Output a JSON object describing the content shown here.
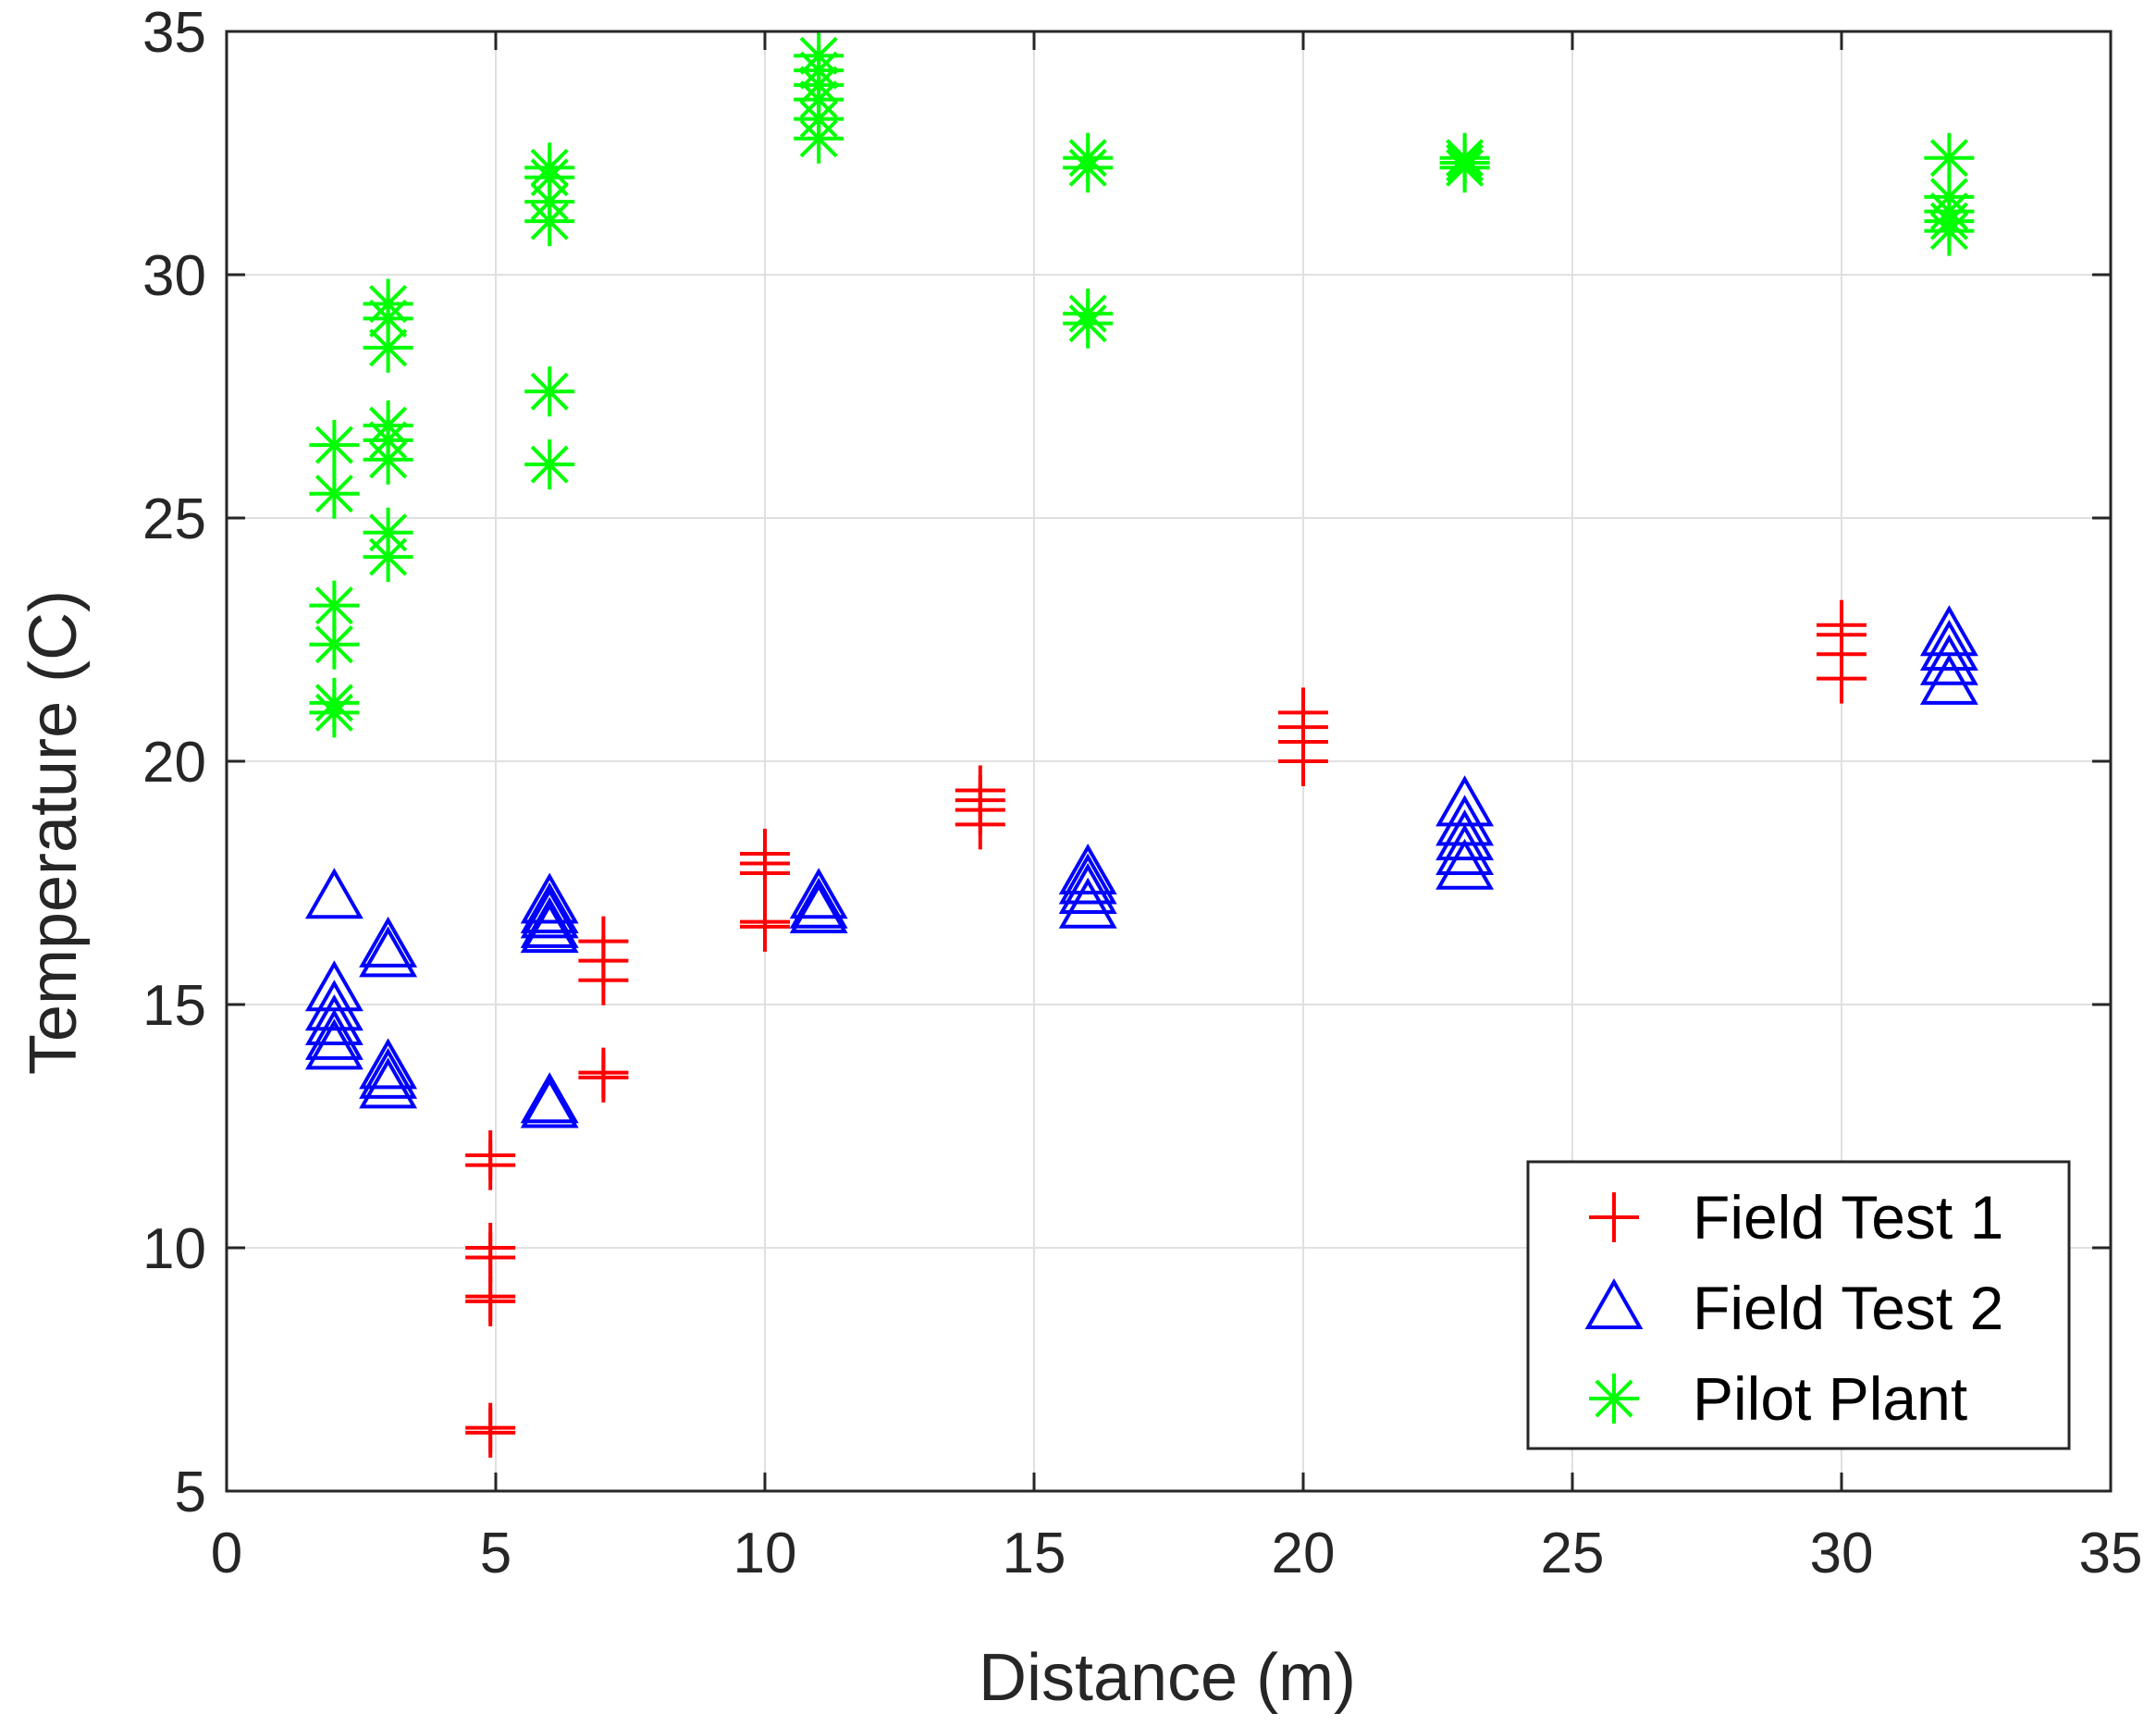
{
  "chart_data": {
    "type": "scatter",
    "title": "",
    "xlabel": "Distance (m)",
    "ylabel": "Temperature (C)",
    "xlim": [
      0,
      35
    ],
    "ylim": [
      5,
      35
    ],
    "xticks": [
      0,
      5,
      10,
      15,
      20,
      25,
      30,
      35
    ],
    "yticks": [
      5,
      10,
      15,
      20,
      25,
      30,
      35
    ],
    "xtick_labels": [
      "0",
      "5",
      "10",
      "15",
      "20",
      "25",
      "30",
      "35"
    ],
    "ytick_labels": [
      "5",
      "10",
      "15",
      "20",
      "25",
      "30",
      "35"
    ],
    "grid": true,
    "legend_position": "bottom-right",
    "series": [
      {
        "name": "Field Test 1",
        "marker": "plus",
        "color": "#ff0000",
        "points": [
          [
            4.9,
            11.9
          ],
          [
            4.9,
            11.7
          ],
          [
            4.9,
            10.0
          ],
          [
            4.9,
            9.8
          ],
          [
            4.9,
            9.0
          ],
          [
            4.9,
            8.9
          ],
          [
            4.9,
            6.3
          ],
          [
            4.9,
            6.2
          ],
          [
            7.0,
            16.3
          ],
          [
            7.0,
            15.9
          ],
          [
            7.0,
            15.5
          ],
          [
            7.0,
            13.6
          ],
          [
            7.0,
            13.5
          ],
          [
            10.0,
            18.1
          ],
          [
            10.0,
            17.9
          ],
          [
            10.0,
            17.7
          ],
          [
            10.0,
            16.7
          ],
          [
            10.0,
            16.6
          ],
          [
            14.0,
            19.4
          ],
          [
            14.0,
            19.2
          ],
          [
            14.0,
            19.0
          ],
          [
            14.0,
            18.7
          ],
          [
            20.0,
            21.0
          ],
          [
            20.0,
            20.7
          ],
          [
            20.0,
            20.4
          ],
          [
            20.0,
            20.0
          ],
          [
            30.0,
            22.8
          ],
          [
            30.0,
            22.6
          ],
          [
            30.0,
            22.2
          ],
          [
            30.0,
            21.7
          ]
        ]
      },
      {
        "name": "Field Test 2",
        "marker": "triangle",
        "color": "#0000ff",
        "points": [
          [
            2.0,
            17.2
          ],
          [
            2.0,
            15.3
          ],
          [
            2.0,
            14.9
          ],
          [
            2.0,
            14.6
          ],
          [
            2.0,
            14.3
          ],
          [
            2.0,
            14.1
          ],
          [
            3.0,
            16.2
          ],
          [
            3.0,
            16.0
          ],
          [
            3.0,
            13.7
          ],
          [
            3.0,
            13.5
          ],
          [
            3.0,
            13.3
          ],
          [
            6.0,
            17.1
          ],
          [
            6.0,
            16.9
          ],
          [
            6.0,
            16.8
          ],
          [
            6.0,
            16.6
          ],
          [
            6.0,
            16.5
          ],
          [
            6.0,
            13.0
          ],
          [
            6.0,
            12.9
          ],
          [
            11.0,
            17.2
          ],
          [
            11.0,
            17.0
          ],
          [
            11.0,
            16.9
          ],
          [
            16.0,
            17.7
          ],
          [
            16.0,
            17.5
          ],
          [
            16.0,
            17.3
          ],
          [
            16.0,
            17.0
          ],
          [
            23.0,
            19.1
          ],
          [
            23.0,
            18.7
          ],
          [
            23.0,
            18.4
          ],
          [
            23.0,
            18.1
          ],
          [
            23.0,
            17.8
          ],
          [
            32.0,
            22.6
          ],
          [
            32.0,
            22.3
          ],
          [
            32.0,
            22.0
          ],
          [
            32.0,
            21.6
          ]
        ]
      },
      {
        "name": "Pilot Plant",
        "marker": "asterisk",
        "color": "#00ff00",
        "points": [
          [
            2.0,
            26.5
          ],
          [
            2.0,
            25.5
          ],
          [
            2.0,
            23.2
          ],
          [
            2.0,
            22.4
          ],
          [
            2.0,
            21.2
          ],
          [
            2.0,
            21.0
          ],
          [
            3.0,
            29.4
          ],
          [
            3.0,
            29.1
          ],
          [
            3.0,
            28.5
          ],
          [
            3.0,
            26.9
          ],
          [
            3.0,
            26.6
          ],
          [
            3.0,
            26.2
          ],
          [
            3.0,
            24.7
          ],
          [
            3.0,
            24.2
          ],
          [
            6.0,
            32.2
          ],
          [
            6.0,
            32.0
          ],
          [
            6.0,
            31.5
          ],
          [
            6.0,
            31.1
          ],
          [
            6.0,
            27.6
          ],
          [
            6.0,
            26.1
          ],
          [
            11.0,
            34.5
          ],
          [
            11.0,
            34.2
          ],
          [
            11.0,
            33.9
          ],
          [
            11.0,
            33.6
          ],
          [
            11.0,
            33.2
          ],
          [
            11.0,
            32.8
          ],
          [
            16.0,
            32.4
          ],
          [
            16.0,
            32.2
          ],
          [
            16.0,
            29.2
          ],
          [
            16.0,
            29.0
          ],
          [
            23.0,
            32.4
          ],
          [
            23.0,
            32.3
          ],
          [
            23.0,
            32.2
          ],
          [
            32.0,
            32.4
          ],
          [
            32.0,
            31.6
          ],
          [
            32.0,
            31.3
          ],
          [
            32.0,
            31.1
          ],
          [
            32.0,
            30.9
          ]
        ]
      }
    ]
  }
}
